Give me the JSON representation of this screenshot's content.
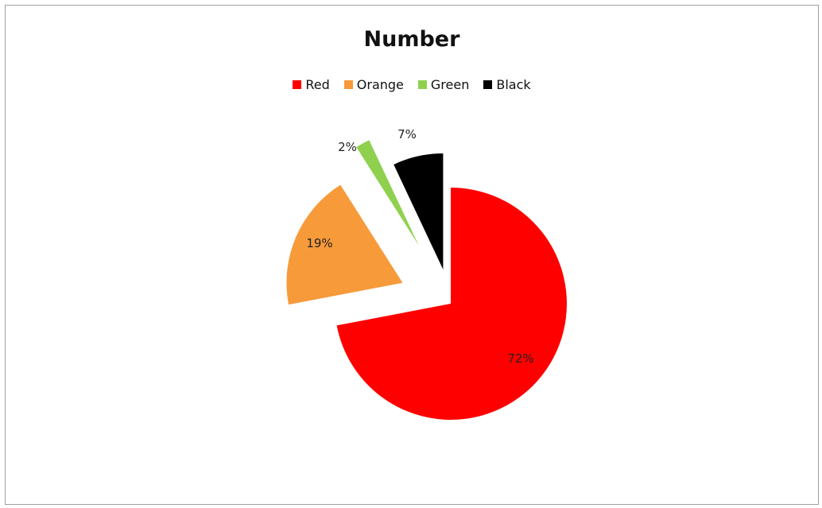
{
  "chart_data": {
    "type": "pie",
    "title": "Number",
    "legend_position": "top",
    "categories": [
      "Red",
      "Orange",
      "Green",
      "Black"
    ],
    "values": [
      72,
      19,
      2,
      7
    ],
    "labels": [
      "72%",
      "19%",
      "2%",
      "7%"
    ],
    "colors": [
      "#ff0000",
      "#f79a3a",
      "#8fd14f",
      "#000000"
    ],
    "exploded": true
  }
}
